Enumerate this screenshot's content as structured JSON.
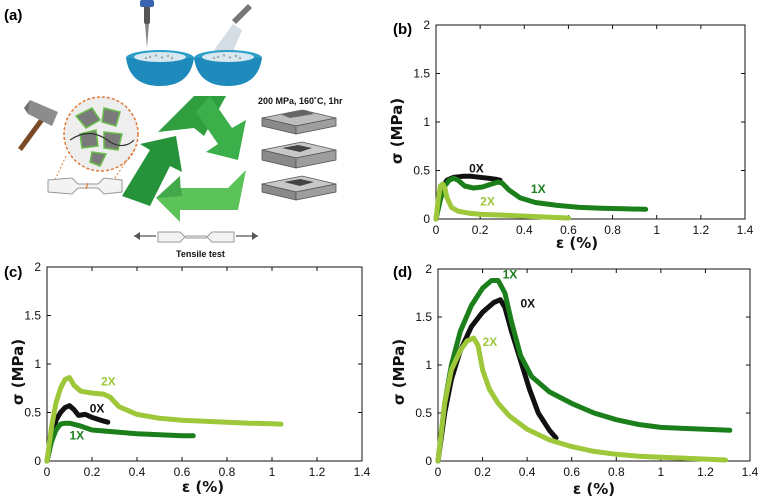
{
  "panel_a": {
    "label": "(a)",
    "press_label": "200 MPa, 160˚C, 1hr",
    "tensile_label": "Tensile test"
  },
  "colors": {
    "0X": "#111111",
    "1X": "#1b7f1b",
    "2X": "#9ec73a"
  },
  "chart_data": [
    {
      "id": "b",
      "panel_label": "(b)",
      "type": "line",
      "xlabel": "ε (%)",
      "ylabel": "σ (MPa)",
      "xlim": [
        0,
        1.4
      ],
      "ylim": [
        0,
        2
      ],
      "xticks": [
        "0",
        "0.2",
        "0.4",
        "0.6",
        "0.8",
        "1",
        "1.2",
        "1.4"
      ],
      "yticks": [
        "0",
        "0.5",
        "1",
        "1.5",
        "2"
      ],
      "grid": false,
      "series": [
        {
          "name": "0X",
          "key": "0X",
          "x": [
            0,
            0.015,
            0.03,
            0.05,
            0.08,
            0.12,
            0.16,
            0.2,
            0.24,
            0.27,
            0.29
          ],
          "y": [
            0,
            0.2,
            0.33,
            0.4,
            0.43,
            0.44,
            0.44,
            0.43,
            0.42,
            0.41,
            0.4
          ]
        },
        {
          "name": "1X",
          "key": "1X",
          "x": [
            0,
            0.02,
            0.04,
            0.06,
            0.08,
            0.1,
            0.13,
            0.17,
            0.21,
            0.25,
            0.28,
            0.3,
            0.33,
            0.38,
            0.45,
            0.55,
            0.65,
            0.75,
            0.85,
            0.95
          ],
          "y": [
            0,
            0.2,
            0.34,
            0.4,
            0.42,
            0.4,
            0.34,
            0.32,
            0.33,
            0.36,
            0.38,
            0.37,
            0.3,
            0.22,
            0.17,
            0.14,
            0.12,
            0.11,
            0.105,
            0.1
          ]
        },
        {
          "name": "2X",
          "key": "2X",
          "x": [
            0,
            0.01,
            0.02,
            0.03,
            0.04,
            0.05,
            0.07,
            0.1,
            0.15,
            0.2,
            0.3,
            0.4,
            0.5,
            0.6
          ],
          "y": [
            0,
            0.2,
            0.34,
            0.36,
            0.32,
            0.22,
            0.12,
            0.08,
            0.06,
            0.05,
            0.04,
            0.03,
            0.02,
            0.01
          ]
        }
      ],
      "labels": [
        {
          "text": "0X",
          "key": "0X",
          "x": 0.15,
          "y": 0.48
        },
        {
          "text": "1X",
          "key": "1X",
          "x": 0.43,
          "y": 0.27
        },
        {
          "text": "2X",
          "key": "2X",
          "x": 0.2,
          "y": 0.14
        }
      ]
    },
    {
      "id": "c",
      "panel_label": "(c)",
      "type": "line",
      "xlabel": "ε (%)",
      "ylabel": "σ (MPa)",
      "xlim": [
        0,
        1.4
      ],
      "ylim": [
        0,
        2
      ],
      "xticks": [
        "0",
        "0.2",
        "0.4",
        "0.6",
        "0.8",
        "1",
        "1.2",
        "1.4"
      ],
      "yticks": [
        "0",
        "0.5",
        "1",
        "1.5",
        "2"
      ],
      "grid": false,
      "series": [
        {
          "name": "0X",
          "key": "0X",
          "x": [
            0,
            0.02,
            0.04,
            0.06,
            0.08,
            0.1,
            0.12,
            0.14,
            0.17,
            0.2,
            0.24,
            0.27
          ],
          "y": [
            0,
            0.25,
            0.42,
            0.5,
            0.55,
            0.57,
            0.53,
            0.47,
            0.48,
            0.45,
            0.42,
            0.4
          ]
        },
        {
          "name": "1X",
          "key": "1X",
          "x": [
            0,
            0.02,
            0.04,
            0.06,
            0.08,
            0.1,
            0.15,
            0.2,
            0.3,
            0.4,
            0.5,
            0.6,
            0.65
          ],
          "y": [
            0,
            0.2,
            0.32,
            0.38,
            0.39,
            0.39,
            0.36,
            0.32,
            0.3,
            0.28,
            0.27,
            0.26,
            0.26
          ]
        },
        {
          "name": "2X",
          "key": "2X",
          "x": [
            0,
            0.02,
            0.04,
            0.06,
            0.08,
            0.1,
            0.12,
            0.15,
            0.2,
            0.25,
            0.28,
            0.32,
            0.4,
            0.5,
            0.6,
            0.7,
            0.8,
            0.9,
            1.0,
            1.04
          ],
          "y": [
            0,
            0.35,
            0.6,
            0.75,
            0.84,
            0.86,
            0.78,
            0.72,
            0.7,
            0.69,
            0.66,
            0.56,
            0.48,
            0.44,
            0.42,
            0.41,
            0.4,
            0.39,
            0.385,
            0.38
          ]
        }
      ],
      "labels": [
        {
          "text": "2X",
          "key": "2X",
          "x": 0.24,
          "y": 0.78
        },
        {
          "text": "0X",
          "key": "0X",
          "x": 0.19,
          "y": 0.5
        },
        {
          "text": "1X",
          "key": "1X",
          "x": 0.1,
          "y": 0.22
        }
      ]
    },
    {
      "id": "d",
      "panel_label": "(d)",
      "type": "line",
      "xlabel": "ε (%)",
      "ylabel": "σ (MPa)",
      "xlim": [
        0,
        1.4
      ],
      "ylim": [
        0,
        2
      ],
      "xticks": [
        "0",
        "0.2",
        "0.4",
        "0.6",
        "0.8",
        "1",
        "1.2",
        "1.4"
      ],
      "yticks": [
        "0",
        "0.5",
        "1",
        "1.5",
        "2"
      ],
      "grid": false,
      "series": [
        {
          "name": "0X",
          "key": "0X",
          "x": [
            0,
            0.03,
            0.06,
            0.1,
            0.15,
            0.2,
            0.25,
            0.28,
            0.3,
            0.33,
            0.37,
            0.41,
            0.45,
            0.5,
            0.53
          ],
          "y": [
            0,
            0.5,
            0.85,
            1.15,
            1.4,
            1.55,
            1.65,
            1.68,
            1.6,
            1.35,
            1.05,
            0.75,
            0.5,
            0.32,
            0.24
          ]
        },
        {
          "name": "1X",
          "key": "1X",
          "x": [
            0,
            0.03,
            0.06,
            0.1,
            0.15,
            0.2,
            0.24,
            0.27,
            0.3,
            0.33,
            0.37,
            0.42,
            0.5,
            0.6,
            0.7,
            0.8,
            0.9,
            1.0,
            1.1,
            1.2,
            1.31
          ],
          "y": [
            0,
            0.6,
            1.0,
            1.35,
            1.62,
            1.8,
            1.88,
            1.88,
            1.75,
            1.45,
            1.1,
            0.88,
            0.72,
            0.6,
            0.5,
            0.43,
            0.38,
            0.35,
            0.34,
            0.33,
            0.32
          ]
        },
        {
          "name": "2X",
          "key": "2X",
          "x": [
            0,
            0.03,
            0.06,
            0.1,
            0.13,
            0.16,
            0.18,
            0.2,
            0.23,
            0.27,
            0.32,
            0.4,
            0.5,
            0.6,
            0.7,
            0.8,
            0.9,
            1.0,
            1.1,
            1.2,
            1.29
          ],
          "y": [
            0,
            0.6,
            0.95,
            1.15,
            1.25,
            1.28,
            1.2,
            0.95,
            0.75,
            0.6,
            0.47,
            0.33,
            0.22,
            0.15,
            0.1,
            0.07,
            0.05,
            0.04,
            0.03,
            0.02,
            0.01
          ]
        }
      ],
      "labels": [
        {
          "text": "1X",
          "key": "1X",
          "x": 0.29,
          "y": 1.9
        },
        {
          "text": "0X",
          "key": "0X",
          "x": 0.37,
          "y": 1.6
        },
        {
          "text": "2X",
          "key": "2X",
          "x": 0.2,
          "y": 1.2
        }
      ]
    }
  ]
}
